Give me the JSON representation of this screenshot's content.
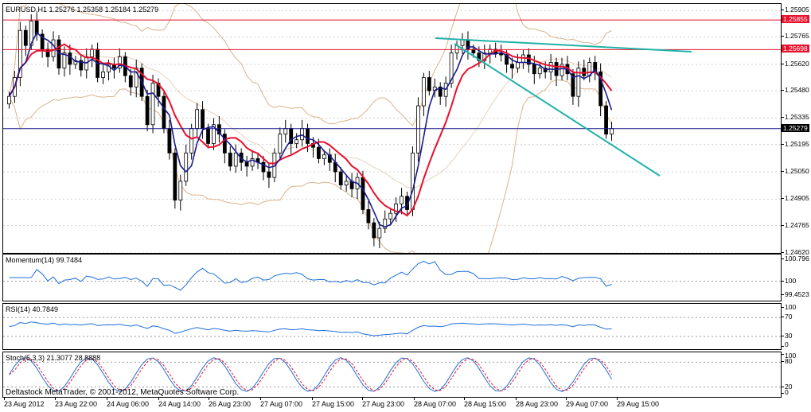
{
  "main_chart": {
    "label": "EURUSD,H1  1.25276 1.25358 1.25184 1.25279",
    "y_ticks": [
      "1.25905",
      "1.25765",
      "1.25620",
      "1.25480",
      "1.25335",
      "1.25195",
      "1.25050",
      "1.24905",
      "1.24765",
      "1.24620"
    ],
    "price_tags": [
      {
        "text": "1.25855",
        "bg": "#e8102c",
        "color": "#ffffff"
      },
      {
        "text": "1.25698",
        "bg": "#e8102c",
        "color": "#ffffff"
      },
      {
        "text": "1.25279",
        "bg": "#000000",
        "color": "#ffffff"
      }
    ]
  },
  "momentum": {
    "label": "Momentum(14) 99.7484",
    "y_ticks": [
      "100.796",
      "100",
      "99.4523"
    ]
  },
  "rsi": {
    "label": "RSI(14) 40.7849",
    "y_ticks": [
      "100",
      "70",
      "30",
      "0"
    ]
  },
  "stoch": {
    "label": "Stoch(5,3,3) 21.3077 28.8888",
    "y_ticks": [
      "100",
      "80",
      "20",
      "0"
    ]
  },
  "x_ticks": [
    "23 Aug 2012",
    "23 Aug 22:00",
    "24 Aug 06:00",
    "24 Aug 14:00",
    "26 Aug 23:00",
    "27 Aug 07:00",
    "27 Aug 15:00",
    "27 Aug 23:00",
    "28 Aug 07:00",
    "28 Aug 15:00",
    "28 Aug 23:00",
    "29 Aug 07:00",
    "29 Aug 15:00"
  ],
  "copyright": "Deltastock MetaTrader, © 2001-2012, MetaQuotes Software Corp.",
  "colors": {
    "bull_candle": "#ffffff",
    "bear_candle": "#000000",
    "fast_ma": "#1a1a8c",
    "slow_ma": "#e8102c",
    "bollinger": "#d9b48c",
    "trendline": "#20b2aa",
    "indicator_line": "#1e6fd9",
    "stoch_signal": "#e8102c",
    "horizontal_level": "#e8102c",
    "current_price_line": "#1a1a8c"
  },
  "chart_data": {
    "type": "candlestick",
    "symbol": "EURUSD",
    "timeframe": "H1",
    "ohlc_last": {
      "open": 1.25276,
      "high": 1.25358,
      "low": 1.25184,
      "close": 1.25279
    },
    "ylim": [
      1.2462,
      1.2594
    ],
    "closes": [
      1.2545,
      1.2555,
      1.258,
      1.2572,
      1.2585,
      1.2578,
      1.257,
      1.2566,
      1.2575,
      1.256,
      1.2568,
      1.2562,
      1.2564,
      1.2559,
      1.2566,
      1.257,
      1.2555,
      1.2558,
      1.2562,
      1.256,
      1.2566,
      1.2556,
      1.255,
      1.256,
      1.2545,
      1.253,
      1.2552,
      1.2545,
      1.2528,
      1.2515,
      1.249,
      1.25,
      1.2515,
      1.2528,
      1.2538,
      1.2528,
      1.252,
      1.253,
      1.2525,
      1.2515,
      1.2508,
      1.2515,
      1.251,
      1.2508,
      1.2512,
      1.251,
      1.2505,
      1.2502,
      1.2515,
      1.2525,
      1.2528,
      1.252,
      1.2522,
      1.2528,
      1.252,
      1.2518,
      1.2512,
      1.2514,
      1.251,
      1.2505,
      1.2498,
      1.25,
      1.2496,
      1.2502,
      1.2485,
      1.2478,
      1.247,
      1.2475,
      1.248,
      1.2483,
      1.2488,
      1.2492,
      1.2485,
      1.2515,
      1.254,
      1.2555,
      1.2548,
      1.255,
      1.2545,
      1.2552,
      1.2568,
      1.2572,
      1.2575,
      1.257,
      1.2568,
      1.2564,
      1.2568,
      1.257,
      1.2568,
      1.2567,
      1.2562,
      1.256,
      1.2563,
      1.2567,
      1.2562,
      1.2557,
      1.256,
      1.2558,
      1.2563,
      1.2556,
      1.2562,
      1.2557,
      1.2545,
      1.256,
      1.2556,
      1.2563,
      1.2558,
      1.254,
      1.2525,
      1.2528
    ],
    "levels": [
      1.25855,
      1.25698,
      1.25279
    ],
    "x_labels": [
      "23 Aug 2012",
      "23 Aug 22:00",
      "24 Aug 06:00",
      "24 Aug 14:00",
      "26 Aug 23:00",
      "27 Aug 07:00",
      "27 Aug 15:00",
      "27 Aug 23:00",
      "28 Aug 07:00",
      "28 Aug 15:00",
      "28 Aug 23:00",
      "29 Aug 07:00",
      "29 Aug 15:00"
    ],
    "indicators": {
      "momentum": {
        "period": 14,
        "last": 99.7484,
        "ylim": [
          99.4523,
          100.796
        ]
      },
      "rsi": {
        "period": 14,
        "last": 40.7849,
        "ylim": [
          0,
          100
        ],
        "levels": [
          70,
          30
        ]
      },
      "stoch": {
        "params": "5,3,3",
        "main": 21.3077,
        "signal": 28.8888,
        "ylim": [
          0,
          100
        ],
        "levels": [
          80,
          20
        ]
      }
    }
  }
}
